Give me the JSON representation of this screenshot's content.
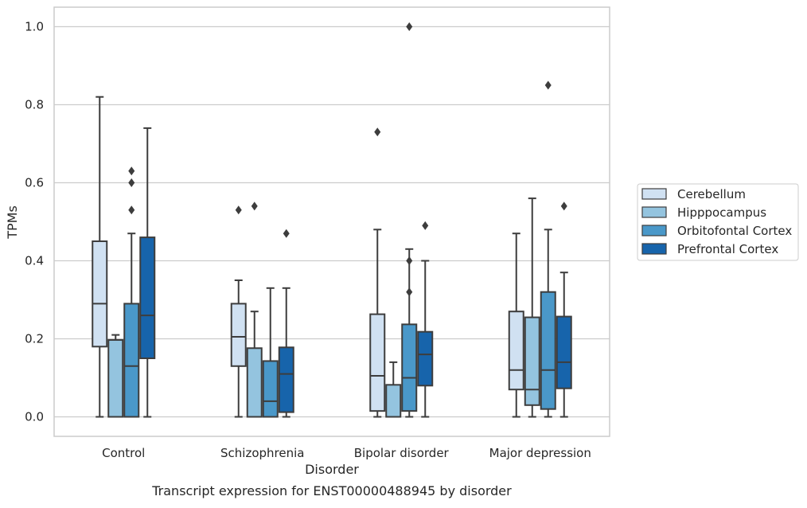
{
  "caption": "Transcript expression for ENST00000488945 by disorder",
  "chart_data": {
    "type": "box",
    "xlabel": "Disorder",
    "ylabel": "TPMs",
    "ylim": [
      -0.05,
      1.05
    ],
    "yticks": [
      0.0,
      0.2,
      0.4,
      0.6,
      0.8,
      1.0
    ],
    "ytick_labels": [
      "0.0",
      "0.2",
      "0.4",
      "0.6",
      "0.8",
      "1.0"
    ],
    "grid": true,
    "legend_position": "right",
    "categories": [
      "Control",
      "Schizophrenia",
      "Bipolar disorder",
      "Major depression"
    ],
    "series": [
      {
        "name": "Cerebellum",
        "color": "#d0e1f2",
        "boxes": [
          {
            "min": 0.0,
            "q1": 0.18,
            "median": 0.29,
            "q3": 0.45,
            "max": 0.82,
            "outliers": []
          },
          {
            "min": 0.0,
            "q1": 0.13,
            "median": 0.205,
            "q3": 0.29,
            "max": 0.35,
            "outliers": [
              0.53
            ]
          },
          {
            "min": 0.0,
            "q1": 0.015,
            "median": 0.105,
            "q3": 0.263,
            "max": 0.48,
            "outliers": [
              0.73
            ]
          },
          {
            "min": 0.0,
            "q1": 0.07,
            "median": 0.12,
            "q3": 0.27,
            "max": 0.47,
            "outliers": []
          }
        ]
      },
      {
        "name": "Hipppocampus",
        "color": "#94c4df",
        "boxes": [
          {
            "min": 0.0,
            "q1": 0.0,
            "median": 0.0,
            "q3": 0.197,
            "max": 0.21,
            "outliers": []
          },
          {
            "min": 0.0,
            "q1": 0.0,
            "median": 0.0,
            "q3": 0.176,
            "max": 0.27,
            "outliers": [
              0.54
            ]
          },
          {
            "min": 0.0,
            "q1": 0.0,
            "median": 0.0,
            "q3": 0.082,
            "max": 0.14,
            "outliers": []
          },
          {
            "min": 0.0,
            "q1": 0.03,
            "median": 0.07,
            "q3": 0.255,
            "max": 0.56,
            "outliers": []
          }
        ]
      },
      {
        "name": "Orbitofontal Cortex",
        "color": "#4a98c9",
        "boxes": [
          {
            "min": 0.0,
            "q1": 0.0,
            "median": 0.13,
            "q3": 0.29,
            "max": 0.47,
            "outliers": [
              0.53,
              0.6,
              0.63
            ]
          },
          {
            "min": 0.0,
            "q1": 0.0,
            "median": 0.04,
            "q3": 0.143,
            "max": 0.33,
            "outliers": []
          },
          {
            "min": 0.0,
            "q1": 0.015,
            "median": 0.1,
            "q3": 0.237,
            "max": 0.43,
            "outliers": [
              0.32,
              0.4,
              1.0
            ]
          },
          {
            "min": 0.0,
            "q1": 0.02,
            "median": 0.12,
            "q3": 0.32,
            "max": 0.48,
            "outliers": [
              0.85
            ]
          }
        ]
      },
      {
        "name": "Prefrontal Cortex",
        "color": "#1764ab",
        "boxes": [
          {
            "min": 0.0,
            "q1": 0.15,
            "median": 0.26,
            "q3": 0.46,
            "max": 0.74,
            "outliers": []
          },
          {
            "min": 0.0,
            "q1": 0.012,
            "median": 0.11,
            "q3": 0.178,
            "max": 0.33,
            "outliers": [
              0.47
            ]
          },
          {
            "min": 0.0,
            "q1": 0.08,
            "median": 0.16,
            "q3": 0.218,
            "max": 0.4,
            "outliers": [
              0.49
            ]
          },
          {
            "min": 0.0,
            "q1": 0.073,
            "median": 0.14,
            "q3": 0.257,
            "max": 0.37,
            "outliers": [
              0.54
            ]
          }
        ]
      }
    ]
  }
}
